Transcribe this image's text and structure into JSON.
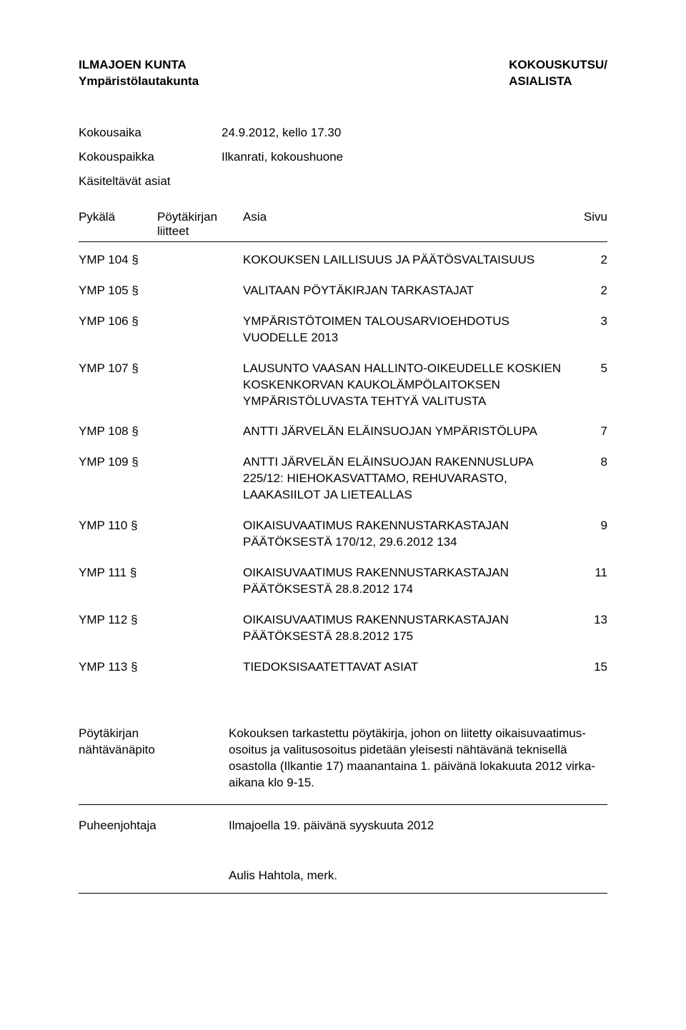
{
  "header": {
    "left_line1": "ILMAJOEN KUNTA",
    "left_line2": "Ympäristölautakunta",
    "right_line1": "KOKOUSKUTSU/",
    "right_line2": "ASIALISTA"
  },
  "meta": {
    "kokousaika_label": "Kokousaika",
    "kokousaika_value": "24.9.2012, kello 17.30",
    "kokouspaikka_label": "Kokouspaikka",
    "kokouspaikka_value": "Ilkanrati, kokoushuone",
    "kasiteltavat_label": "Käsiteltävät asiat"
  },
  "table_header": {
    "pykala": "Pykälä",
    "liitteet1": "Pöytäkirjan",
    "liitteet2": "liitteet",
    "asia": "Asia",
    "sivu": "Sivu"
  },
  "items": [
    {
      "pykala": "YMP 104 §",
      "asia": "KOKOUKSEN LAILLISUUS JA PÄÄTÖSVALTAISUUS",
      "sivu": "2"
    },
    {
      "pykala": "YMP 105 §",
      "asia": "VALITAAN PÖYTÄKIRJAN TARKASTAJAT",
      "sivu": "2"
    },
    {
      "pykala": "YMP 106 §",
      "asia": "YMPÄRISTÖTOIMEN TALOUSARVIOEHDOTUS VUODELLE 2013",
      "sivu": "3"
    },
    {
      "pykala": "YMP 107 §",
      "asia": "LAUSUNTO VAASAN HALLINTO-OIKEUDELLE KOSKIEN KOSKENKORVAN KAUKOLÄMPÖLAITOKSEN YMPÄRISTÖLUVASTA TEHTYÄ VALITUSTA",
      "sivu": "5"
    },
    {
      "pykala": "YMP 108 §",
      "asia": "ANTTI JÄRVELÄN ELÄINSUOJAN YMPÄRISTÖLUPA",
      "sivu": "7"
    },
    {
      "pykala": "YMP 109 §",
      "asia": "ANTTI JÄRVELÄN ELÄINSUOJAN RAKENNUSLUPA 225/12: HIEHOKASVATTAMO, REHUVARASTO, LAAKASIILOT JA LIETEALLAS",
      "sivu": "8"
    },
    {
      "pykala": "YMP 110 §",
      "asia": "OIKAISUVAATIMUS RAKENNUSTARKASTAJAN PÄÄTÖKSESTÄ 170/12, 29.6.2012 134",
      "sivu": "9"
    },
    {
      "pykala": "YMP 111 §",
      "asia": "OIKAISUVAATIMUS RAKENNUSTARKASTAJAN PÄÄTÖKSESTÄ 28.8.2012 174",
      "sivu": "11"
    },
    {
      "pykala": "YMP 112 §",
      "asia": "OIKAISUVAATIMUS RAKENNUSTARKASTAJAN PÄÄTÖKSESTÄ 28.8.2012 175",
      "sivu": "13"
    },
    {
      "pykala": "YMP 113 §",
      "asia": "TIEDOKSISAATETTAVAT ASIAT",
      "sivu": "15"
    }
  ],
  "bottom": {
    "nahtavanapito_label1": "Pöytäkirjan",
    "nahtavanapito_label2": "nähtävänäpito",
    "nahtavanapito_text": "Kokouksen tarkastettu pöytäkirja, johon on liitetty oikaisuvaatimus­osoitus ja valitusosoitus pidetään yleisesti nähtävänä teknisellä osastolla (Ilkantie 17) maanantaina 1. päivänä lokakuuta 2012 virka-aikana klo 9-15.",
    "puheenjohtaja_label": "Puheenjohtaja",
    "puheenjohtaja_text": "Ilmajoella 19. päivänä syyskuuta 2012",
    "signature": "Aulis Hahtola, merk."
  }
}
